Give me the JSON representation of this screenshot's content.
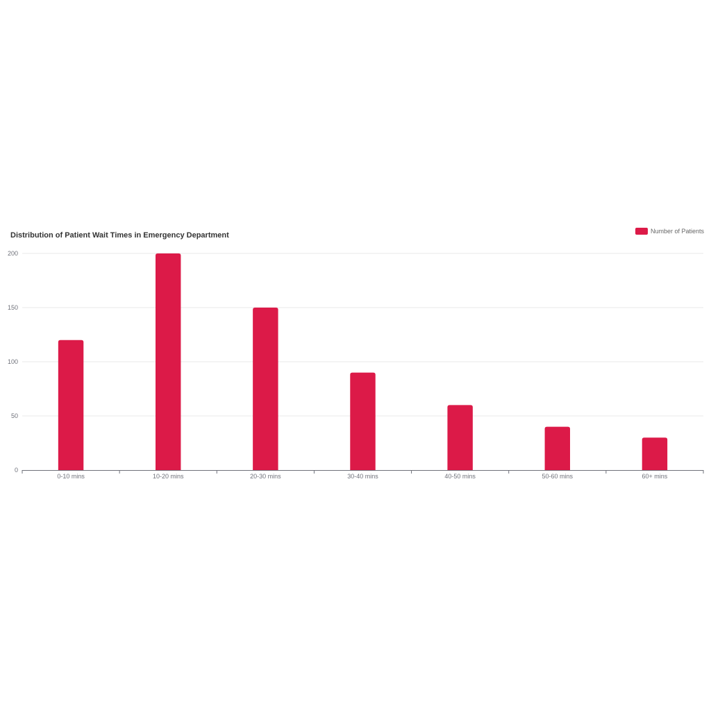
{
  "chart_data": {
    "type": "bar",
    "title": "Distribution of Patient Wait Times in Emergency Department",
    "categories": [
      "0-10 mins",
      "10-20 mins",
      "20-30 mins",
      "30-40 mins",
      "40-50 mins",
      "50-60 mins",
      "60+ mins"
    ],
    "series": [
      {
        "name": "Number of Patients",
        "values": [
          120,
          200,
          150,
          90,
          60,
          40,
          30
        ],
        "color": "#DC1A48"
      }
    ],
    "xlabel": "",
    "ylabel": "",
    "ylim": [
      0,
      200
    ],
    "yticks": [
      0,
      50,
      100,
      150,
      200
    ],
    "grid": true,
    "legend_position": "top-right"
  }
}
